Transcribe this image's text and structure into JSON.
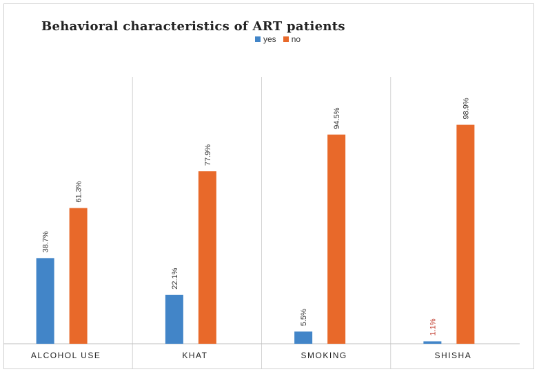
{
  "chart_data": {
    "type": "bar",
    "title": "Behavioral characteristics of ART patients",
    "categories": [
      "ALCOHOL USE",
      "KHAT",
      "SMOKING",
      "SHISHA"
    ],
    "series": [
      {
        "name": "yes",
        "color": "#4285c8",
        "values": [
          38.7,
          22.1,
          5.5,
          1.1
        ],
        "labels": [
          "38.7%",
          "22.1%",
          "5.5%",
          "1.1%"
        ],
        "label_colors": [
          "#333333",
          "#333333",
          "#333333",
          "#c0392b"
        ]
      },
      {
        "name": "no",
        "color": "#e8692a",
        "values": [
          61.3,
          77.9,
          94.5,
          98.9
        ],
        "labels": [
          "61.3%",
          "77.9%",
          "94.5%",
          "98.9%"
        ],
        "label_colors": [
          "#333333",
          "#333333",
          "#333333",
          "#333333"
        ]
      }
    ],
    "xlabel": "",
    "ylabel": "",
    "ylim": [
      0,
      100
    ],
    "grid": false,
    "legend_position": "top"
  }
}
